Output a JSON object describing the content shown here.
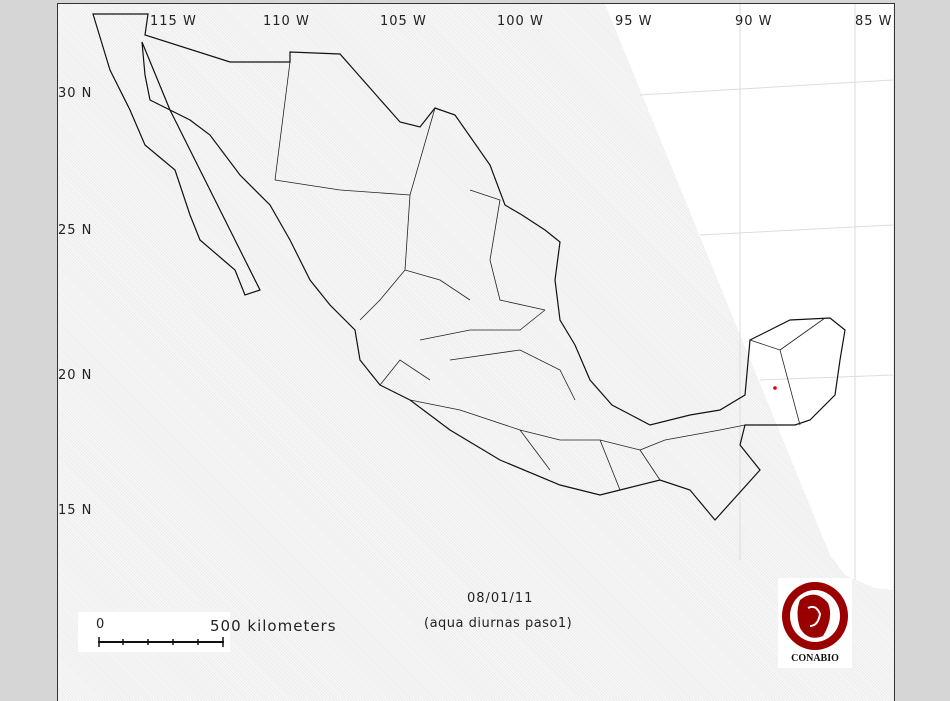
{
  "map": {
    "longitude_labels": [
      "115 W",
      "110 W",
      "105 W",
      "100 W",
      "95 W",
      "90 W",
      "85 W"
    ],
    "latitude_labels": [
      "30 N",
      "25 N",
      "20 N",
      "15 N"
    ],
    "date": "08/01/11",
    "subtitle": "(aqua diurnas paso1)",
    "scale_bar": {
      "start": "0",
      "end": "500 kilometers"
    },
    "logo_text": "CONABIO",
    "colors": {
      "outline": "#111111",
      "hotspot": "#e00000",
      "logo": "#9b0000",
      "background": "#d6d6d6"
    },
    "hotspots": [
      {
        "lon": -90.3,
        "lat": 19.5
      }
    ]
  }
}
